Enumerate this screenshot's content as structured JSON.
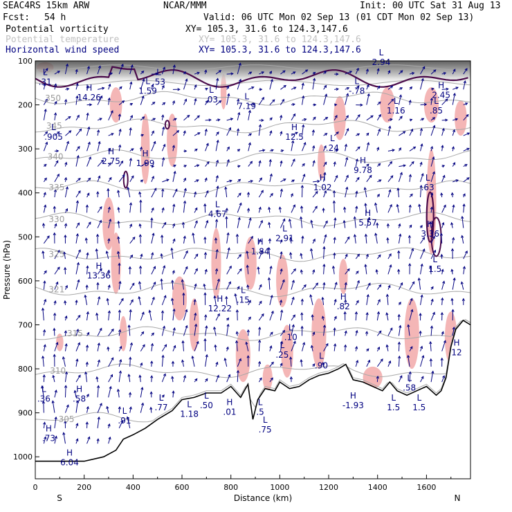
{
  "header": {
    "model": "SEAC4RS 15km ARW",
    "org": "NCAR/MMM",
    "init": "Init: 00 UTC Sat 31 Aug 13",
    "fcst_label": "Fcst:",
    "fcst_value": "54 h",
    "valid": "Valid: 06 UTC Mon 02 Sep 13 (01 CDT Mon 02 Sep 13)",
    "field1": "Potential vorticity",
    "field2": "Potential temperature",
    "field3": "Horizontal wind speed",
    "xy1": "XY= 105.3, 31.6 to 124.3,147.6",
    "xy2": "XY= 105.3, 31.6 to 124.3,147.6",
    "xy3": "XY= 105.3, 31.6 to 124.3,147.6"
  },
  "colors": {
    "pv_contour": "#4a0a4a",
    "pv_shade": "#f4b6b6",
    "theta": "#a8a8a8",
    "wind": "#000080",
    "terrain": "#000000"
  },
  "chart_data": {
    "type": "cross-section",
    "xlabel": "Distance (km)",
    "ylabel": "Pressure (hPa)",
    "xlim": [
      0,
      1780
    ],
    "ylim": [
      1050,
      100
    ],
    "xticks": [
      "0",
      "200",
      "400",
      "600",
      "800",
      "1000",
      "1200",
      "1400",
      "1600"
    ],
    "yticks": [
      "100",
      "200",
      "300",
      "400",
      "500",
      "600",
      "700",
      "800",
      "900",
      "1000"
    ],
    "left_end": "S",
    "right_end": "N",
    "terrain": {
      "x": [
        0,
        200,
        280,
        330,
        360,
        400,
        450,
        500,
        560,
        600,
        650,
        700,
        760,
        800,
        840,
        870,
        890,
        910,
        940,
        980,
        1000,
        1040,
        1080,
        1120,
        1160,
        1200,
        1240,
        1270,
        1300,
        1340,
        1380,
        1420,
        1450,
        1480,
        1520,
        1560,
        1600,
        1640,
        1660,
        1680,
        1700,
        1720,
        1750,
        1780
      ],
      "p": [
        1010,
        1010,
        1000,
        985,
        960,
        950,
        935,
        915,
        895,
        870,
        865,
        855,
        855,
        840,
        865,
        835,
        915,
        870,
        845,
        850,
        830,
        845,
        840,
        825,
        815,
        810,
        800,
        790,
        825,
        830,
        840,
        850,
        830,
        850,
        860,
        850,
        840,
        860,
        850,
        820,
        750,
        710,
        690,
        700
      ]
    },
    "theta_levels": [
      {
        "label": "350",
        "x": 40,
        "p": 185
      },
      {
        "label": "345",
        "x": 45,
        "p": 248
      },
      {
        "label": "340",
        "x": 50,
        "p": 318
      },
      {
        "label": "335",
        "x": 55,
        "p": 388
      },
      {
        "label": "330",
        "x": 55,
        "p": 460
      },
      {
        "label": "325",
        "x": 55,
        "p": 540
      },
      {
        "label": "321",
        "x": 55,
        "p": 620
      },
      {
        "label": "315",
        "x": 130,
        "p": 720
      },
      {
        "label": "310",
        "x": 60,
        "p": 805
      },
      {
        "label": "305",
        "x": 95,
        "p": 915
      }
    ],
    "pv_extrema": [
      {
        "kind": "L",
        "value": ".31",
        "x": 40,
        "p": 145
      },
      {
        "kind": "H",
        "value": "14.26",
        "x": 220,
        "p": 180
      },
      {
        "kind": "L",
        "value": "1.59",
        "x": 460,
        "p": 165
      },
      {
        "kind": "L",
        "value": ".53",
        "x": 505,
        "p": 145
      },
      {
        "kind": "L",
        "value": ".03",
        "x": 720,
        "p": 185
      },
      {
        "kind": "L",
        "value": "7.19",
        "x": 865,
        "p": 200
      },
      {
        "kind": "L",
        "value": "2.94",
        "x": 1415,
        "p": 100
      },
      {
        "kind": "L",
        "value": "-.78",
        "x": 1315,
        "p": 165
      },
      {
        "kind": "H",
        "value": "2.45",
        "x": 1660,
        "p": 175
      },
      {
        "kind": "L",
        "value": "1.16",
        "x": 1475,
        "p": 210
      },
      {
        "kind": "L",
        "value": ".85",
        "x": 1640,
        "p": 210
      },
      {
        "kind": "L",
        "value": ".905",
        "x": 75,
        "p": 270
      },
      {
        "kind": "H",
        "value": "2.75",
        "x": 310,
        "p": 325
      },
      {
        "kind": "H",
        "value": "1.99",
        "x": 450,
        "p": 330
      },
      {
        "kind": "H",
        "value": "12.5",
        "x": 1060,
        "p": 270
      },
      {
        "kind": "L",
        "value": ".24",
        "x": 1215,
        "p": 295
      },
      {
        "kind": "H",
        "value": "9.78",
        "x": 1340,
        "p": 345
      },
      {
        "kind": "H",
        "value": "1.02",
        "x": 1175,
        "p": 385
      },
      {
        "kind": "L",
        "value": ".63",
        "x": 1605,
        "p": 385
      },
      {
        "kind": "L",
        "value": "4.67",
        "x": 745,
        "p": 445
      },
      {
        "kind": "H",
        "value": "5.57",
        "x": 1360,
        "p": 465
      },
      {
        "kind": "H",
        "value": "3.36",
        "x": 1615,
        "p": 490
      },
      {
        "kind": "L",
        "value": "2.91",
        "x": 1020,
        "p": 500
      },
      {
        "kind": "H",
        "value": "1.84",
        "x": 920,
        "p": 530
      },
      {
        "kind": "L",
        "value": "1.5",
        "x": 1635,
        "p": 570
      },
      {
        "kind": "H",
        "value": "13.36",
        "x": 260,
        "p": 585
      },
      {
        "kind": "L",
        "value": ".15",
        "x": 850,
        "p": 640
      },
      {
        "kind": "H",
        "value": "12.22",
        "x": 755,
        "p": 660
      },
      {
        "kind": "H",
        "value": ".82",
        "x": 1260,
        "p": 655
      },
      {
        "kind": "L",
        "value": ".10",
        "x": 1045,
        "p": 725
      },
      {
        "kind": "L",
        "value": ".25",
        "x": 1010,
        "p": 765
      },
      {
        "kind": "L",
        "value": ".90",
        "x": 1170,
        "p": 790
      },
      {
        "kind": "H",
        "value": "12",
        "x": 1730,
        "p": 760
      },
      {
        "kind": "L",
        "value": ".58",
        "x": 1530,
        "p": 840
      },
      {
        "kind": "L",
        "value": ".36",
        "x": 35,
        "p": 865
      },
      {
        "kind": "H",
        "value": ".58",
        "x": 180,
        "p": 865
      },
      {
        "kind": "L",
        "value": ".77",
        "x": 515,
        "p": 885
      },
      {
        "kind": "L",
        "value": "1.18",
        "x": 630,
        "p": 900
      },
      {
        "kind": "L",
        "value": ".50",
        "x": 700,
        "p": 880
      },
      {
        "kind": "H",
        "value": ".01",
        "x": 795,
        "p": 895
      },
      {
        "kind": "L",
        "value": ".5",
        "x": 920,
        "p": 895
      },
      {
        "kind": "L",
        "value": ".75",
        "x": 940,
        "p": 935
      },
      {
        "kind": "H",
        "value": "-1.93",
        "x": 1300,
        "p": 880
      },
      {
        "kind": "L",
        "value": "1.5",
        "x": 1465,
        "p": 885
      },
      {
        "kind": "L",
        "value": "1.5",
        "x": 1570,
        "p": 885
      },
      {
        "kind": "L",
        "value": ".91",
        "x": 365,
        "p": 915
      },
      {
        "kind": "H",
        "value": ".73",
        "x": 55,
        "p": 955
      },
      {
        "kind": "H",
        "value": "6.04",
        "x": 140,
        "p": 1010
      }
    ]
  }
}
